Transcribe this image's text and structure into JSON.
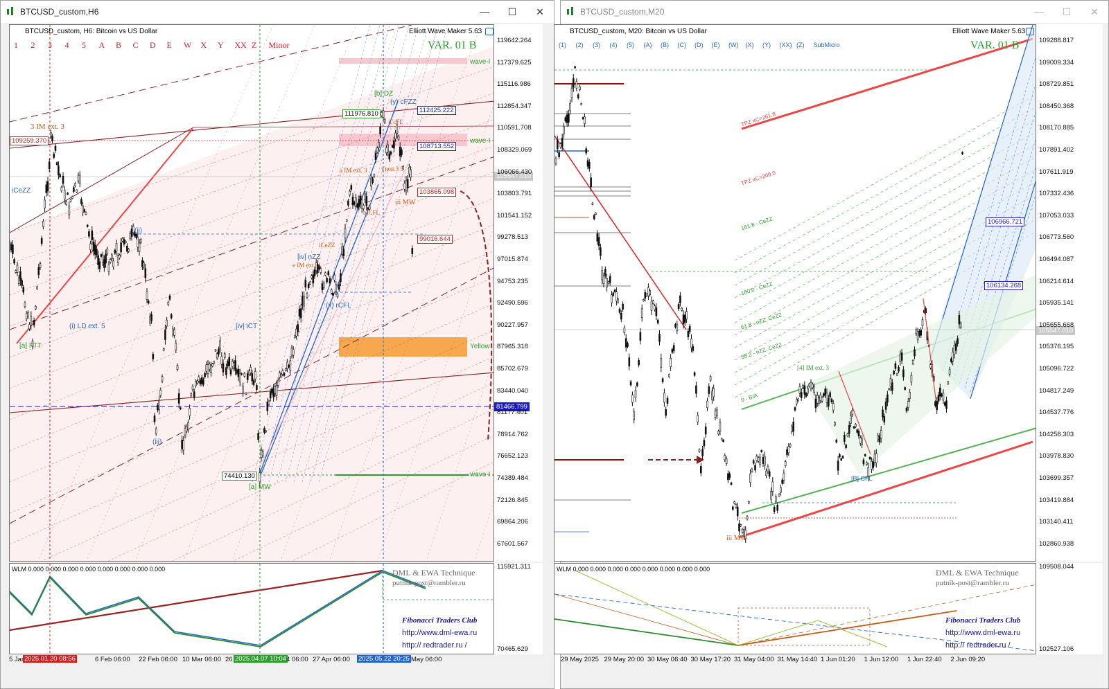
{
  "left": {
    "title": "BTCUSD_custom,H6",
    "header": "BTCUSD_custom, H6:  Bitcoin vs US Dollar",
    "ewm": "Elliott Wave Maker 5.63",
    "var_label": "VAR. 01 B",
    "wave_buttons": [
      "1",
      "2",
      "3",
      "4",
      "5",
      "A",
      "B",
      "C",
      "D",
      "E",
      "W",
      "X",
      "Y",
      "XX",
      "Z",
      "Minor"
    ],
    "price_labels": [
      "119642.264",
      "117379.625",
      "115116.986",
      "112854.347",
      "110591.708",
      "108329.069",
      "106066.430",
      "103803.791",
      "101541.152",
      "99278.513",
      "97015.874",
      "94753.235",
      "92490.596",
      "90227.957",
      "87965.318",
      "85702.679",
      "83440.040",
      "81177.401",
      "78914.762",
      "76652.123",
      "74389.484",
      "72126.845",
      "69864.206",
      "67601.567"
    ],
    "current_price": "105547.010",
    "tags": {
      "t109259": "109259.370",
      "t111976": "111976.810",
      "t112425": "112425.222",
      "t108713": "108713.552",
      "t103865": "103865.098",
      "t99016": "99016.644",
      "t81466": "81466.799",
      "t74410": "74410.130"
    },
    "wave_labels": {
      "ext3": "3 IM ext. 3",
      "icezz": "iCeZZ",
      "ld": "(i) LD ext. 5",
      "ftt": "[a] FTT",
      "mw": "[a] MW",
      "bdz": "[b] DZ",
      "ycfzz": "(y) cFZZ",
      "cfl": "ii cFL",
      "iiimw": "iii MW",
      "imext3": "a IM ext. 3",
      "bcfl": "b)CFL",
      "ivnzz": "[iv] nZZ",
      "iceezz": "iCeZZ",
      "eimext3": "e IM ext. 3",
      "xcfl": "(x) rCFL",
      "ivict": "[iv] iCT",
      "ii_label": "(ii)",
      "iii_label": "(iii)",
      "wave1": "wave-I",
      "wave2": "wave-I",
      "wave3": "wave-I",
      "yellow": "Yellow",
      "yiv": "y)ext.3 5"
    },
    "wlm": "WLM 0.000 0.000 0.000 0.000 0.000 0.000 0.000 0.000",
    "wlm_prices": [
      "115921.311",
      "70465.629"
    ],
    "time_labels": [
      "5 Jan",
      "6 Feb 06:00",
      "22 Feb 06:00",
      "10 Mar 06:00",
      "26",
      "4 06:00",
      "27 Apr 06:00",
      "May 06:00"
    ],
    "time_boxes": [
      "2025.01.20 08:56",
      "2025.04.07 10:04",
      "2025.05.22 20:25"
    ]
  },
  "right": {
    "title": "BTCUSD_custom,M20",
    "header": "BTCUSD_custom, M20:  Bitcoin vs US Dollar",
    "ewm": "Elliott Wave Maker 5.63",
    "var_label": "VAR. 01 B",
    "wave_buttons": [
      "(1)",
      "(2)",
      "(3)",
      "(4)",
      "(5)",
      "(A)",
      "(B)",
      "(C)",
      "(D)",
      "(E)",
      "(W)",
      "(X)",
      "(Y)",
      "(XX)",
      "(Z)",
      "SubMicro"
    ],
    "price_labels": [
      "109288.817",
      "109009.334",
      "108729.851",
      "108450.368",
      "108170.885",
      "107891.402",
      "107611.919",
      "107332.436",
      "107053.033",
      "106773.560",
      "106494.087",
      "106214.614",
      "105935.141",
      "105655.668",
      "105376.195",
      "105096.722",
      "104817.249",
      "104537.776",
      "104258.303",
      "103978.830",
      "103699.357",
      "103419.884",
      "103140.411",
      "102860.938"
    ],
    "current_price": "105547.010",
    "tags": {
      "t106966": "106966.721",
      "t106134": "106134.268"
    },
    "fib_labels": [
      "TPZ xC=261.8",
      "TPZ xC=200.0",
      "161.8 - CeZZ",
      "100.0 - CeZZ",
      "61.8 - nZZ, CeZZ",
      "38.2 - nZZ, CeZZ",
      "0 - B/A"
    ],
    "wave_labels": {
      "iiimw": "iii MW",
      "imext3": "[4] IM ext. 3",
      "bfl": "[B] CFL"
    },
    "wlm": "WLM 0.000 0.000 0.000 0.000 0.000 0.000 0.000 0.000",
    "wlm_prices": [
      "109508.044",
      "102527.106"
    ],
    "time_labels": [
      "29 May 2025",
      "29 May 20:00",
      "30 May 06:40",
      "30 May 17:20",
      "31 May 04:00",
      "31 May 14:40",
      "1 Jun 01:20",
      "1 Jun 12:00",
      "1 Jun 22:40",
      "2 Jun 09:20"
    ]
  },
  "credits": {
    "l1": "DML & EWA Technique",
    "l2": "putnik-post@rambler.ru",
    "club": "Fibonacci    Traders    Club",
    "url1": "http://www.dml-ewa.ru",
    "url2": "http://  redtrader.ru  /"
  },
  "window_controls": {
    "minimize": "—",
    "maximize": "☐",
    "close": "✕"
  },
  "colors": {
    "bull": "#2aa02a",
    "bear": "#cc2222",
    "blue": "#2266cc",
    "orange": "#c65a1a"
  }
}
